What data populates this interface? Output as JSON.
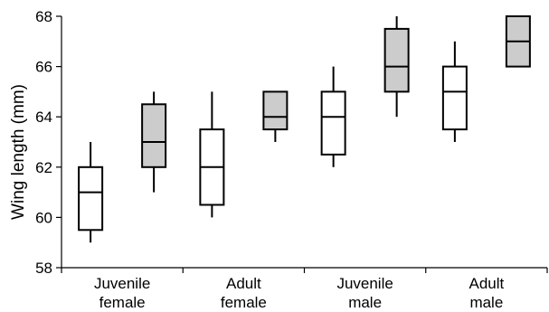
{
  "chart_data": {
    "type": "box",
    "ylabel": "Wing length (mm)",
    "xlabel": "",
    "ylim": [
      58,
      68
    ],
    "yticks": [
      58,
      60,
      62,
      64,
      66,
      68
    ],
    "categories": [
      [
        "Juvenile",
        "female"
      ],
      [
        "Adult",
        "female"
      ],
      [
        "Juvenile",
        "male"
      ],
      [
        "Adult",
        "male"
      ]
    ],
    "colors": {
      "series_1": "#ffffff",
      "series_2": "#cccccc"
    },
    "series": [
      {
        "values": [
          {
            "min": 59.0,
            "q1": 59.5,
            "median": 61.0,
            "q3": 62.0,
            "max": 63.0
          },
          {
            "min": 60.0,
            "q1": 60.5,
            "median": 62.0,
            "q3": 63.5,
            "max": 65.0
          },
          {
            "min": 62.0,
            "q1": 62.5,
            "median": 64.0,
            "q3": 65.0,
            "max": 66.0
          },
          {
            "min": 63.0,
            "q1": 63.5,
            "median": 65.0,
            "q3": 66.0,
            "max": 67.0
          }
        ]
      },
      {
        "values": [
          {
            "min": 61.0,
            "q1": 62.0,
            "median": 63.0,
            "q3": 64.5,
            "max": 65.0
          },
          {
            "min": 63.0,
            "q1": 63.5,
            "median": 64.0,
            "q3": 65.0,
            "max": 65.0
          },
          {
            "min": 64.0,
            "q1": 65.0,
            "median": 66.0,
            "q3": 67.5,
            "max": 68.0
          },
          {
            "min": 66.0,
            "q1": 66.0,
            "median": 67.0,
            "q3": 68.0,
            "max": 68.0
          }
        ]
      }
    ],
    "grid": false,
    "legend": "none"
  }
}
